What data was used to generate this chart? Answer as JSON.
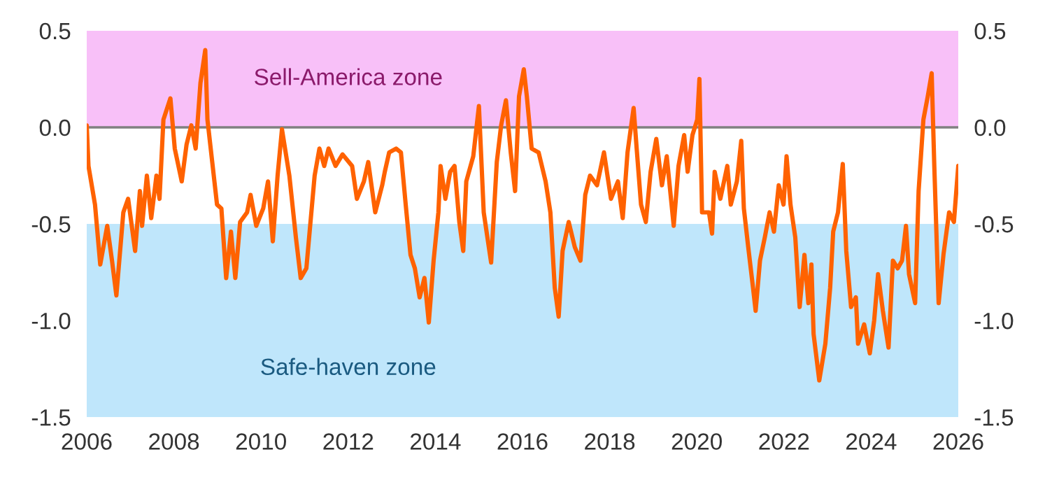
{
  "chart_data": {
    "type": "line",
    "x": [
      2006.0,
      2006.04,
      2006.19,
      2006.31,
      2006.47,
      2006.58,
      2006.68,
      2006.84,
      2006.95,
      2007.11,
      2007.22,
      2007.27,
      2007.38,
      2007.48,
      2007.6,
      2007.67,
      2007.76,
      2007.92,
      2008.02,
      2008.18,
      2008.29,
      2008.4,
      2008.5,
      2008.61,
      2008.72,
      2008.77,
      2008.88,
      2008.99,
      2009.09,
      2009.2,
      2009.31,
      2009.41,
      2009.52,
      2009.68,
      2009.76,
      2009.89,
      2010.05,
      2010.16,
      2010.27,
      2010.38,
      2010.48,
      2010.65,
      2010.8,
      2010.91,
      2011.04,
      2011.23,
      2011.34,
      2011.45,
      2011.55,
      2011.71,
      2011.87,
      2012.09,
      2012.2,
      2012.36,
      2012.46,
      2012.62,
      2012.78,
      2012.84,
      2012.94,
      2013.1,
      2013.21,
      2013.32,
      2013.43,
      2013.53,
      2013.64,
      2013.75,
      2013.85,
      2013.96,
      2014.07,
      2014.12,
      2014.23,
      2014.34,
      2014.44,
      2014.55,
      2014.64,
      2014.71,
      2014.87,
      2015.0,
      2015.11,
      2015.28,
      2015.41,
      2015.51,
      2015.62,
      2015.73,
      2015.83,
      2015.92,
      2016.03,
      2016.1,
      2016.21,
      2016.37,
      2016.53,
      2016.64,
      2016.74,
      2016.83,
      2016.92,
      2017.06,
      2017.2,
      2017.33,
      2017.44,
      2017.55,
      2017.71,
      2017.87,
      2018.03,
      2018.19,
      2018.3,
      2018.41,
      2018.55,
      2018.62,
      2018.72,
      2018.83,
      2018.94,
      2019.07,
      2019.2,
      2019.31,
      2019.47,
      2019.58,
      2019.71,
      2019.79,
      2019.9,
      2020.01,
      2020.06,
      2020.12,
      2020.28,
      2020.35,
      2020.41,
      2020.54,
      2020.7,
      2020.78,
      2020.92,
      2021.02,
      2021.08,
      2021.18,
      2021.29,
      2021.35,
      2021.45,
      2021.56,
      2021.67,
      2021.77,
      2021.88,
      2021.99,
      2022.06,
      2022.15,
      2022.26,
      2022.36,
      2022.47,
      2022.56,
      2022.63,
      2022.68,
      2022.81,
      2022.95,
      2023.06,
      2023.13,
      2023.24,
      2023.35,
      2023.43,
      2023.54,
      2023.65,
      2023.7,
      2023.84,
      2023.97,
      2024.07,
      2024.16,
      2024.27,
      2024.4,
      2024.5,
      2024.61,
      2024.71,
      2024.8,
      2024.87,
      2025.01,
      2025.09,
      2025.2,
      2025.3,
      2025.39,
      2025.45,
      2025.55,
      2025.66,
      2025.79,
      2025.9,
      2026.0
    ],
    "series": [
      {
        "color": "#ff6200",
        "values": [
          0.01,
          -0.2,
          -0.4,
          -0.71,
          -0.51,
          -0.69,
          -0.87,
          -0.44,
          -0.37,
          -0.64,
          -0.33,
          -0.51,
          -0.25,
          -0.47,
          -0.25,
          -0.37,
          0.04,
          0.15,
          -0.11,
          -0.28,
          -0.09,
          0.01,
          -0.11,
          0.23,
          0.4,
          0.04,
          -0.18,
          -0.4,
          -0.42,
          -0.78,
          -0.54,
          -0.78,
          -0.49,
          -0.44,
          -0.35,
          -0.51,
          -0.42,
          -0.28,
          -0.59,
          -0.25,
          -0.01,
          -0.25,
          -0.57,
          -0.78,
          -0.73,
          -0.25,
          -0.11,
          -0.2,
          -0.11,
          -0.2,
          -0.14,
          -0.2,
          -0.37,
          -0.28,
          -0.18,
          -0.44,
          -0.3,
          -0.23,
          -0.13,
          -0.11,
          -0.13,
          -0.4,
          -0.66,
          -0.73,
          -0.88,
          -0.78,
          -1.01,
          -0.69,
          -0.44,
          -0.2,
          -0.37,
          -0.23,
          -0.2,
          -0.49,
          -0.64,
          -0.28,
          -0.15,
          0.11,
          -0.44,
          -0.7,
          -0.18,
          0.01,
          0.14,
          -0.13,
          -0.33,
          0.16,
          0.3,
          0.16,
          -0.11,
          -0.13,
          -0.28,
          -0.44,
          -0.83,
          -0.98,
          -0.64,
          -0.49,
          -0.62,
          -0.69,
          -0.35,
          -0.25,
          -0.3,
          -0.13,
          -0.37,
          -0.28,
          -0.47,
          -0.13,
          0.1,
          -0.11,
          -0.4,
          -0.49,
          -0.23,
          -0.06,
          -0.3,
          -0.15,
          -0.51,
          -0.2,
          -0.04,
          -0.23,
          -0.04,
          0.04,
          0.25,
          -0.44,
          -0.44,
          -0.55,
          -0.23,
          -0.37,
          -0.2,
          -0.4,
          -0.28,
          -0.07,
          -0.42,
          -0.62,
          -0.83,
          -0.95,
          -0.69,
          -0.57,
          -0.44,
          -0.54,
          -0.3,
          -0.4,
          -0.15,
          -0.4,
          -0.57,
          -0.93,
          -0.66,
          -0.91,
          -0.71,
          -1.07,
          -1.31,
          -1.12,
          -0.83,
          -0.54,
          -0.44,
          -0.19,
          -0.64,
          -0.93,
          -0.88,
          -1.12,
          -1.02,
          -1.17,
          -1.0,
          -0.76,
          -0.95,
          -1.14,
          -0.69,
          -0.73,
          -0.69,
          -0.51,
          -0.76,
          -0.91,
          -0.33,
          0.04,
          0.16,
          0.28,
          -0.2,
          -0.91,
          -0.66,
          -0.44,
          -0.49,
          -0.2
        ]
      }
    ],
    "xlim": [
      2006,
      2026
    ],
    "xticks": [
      2006,
      2008,
      2010,
      2012,
      2014,
      2016,
      2018,
      2020,
      2022,
      2024,
      2026
    ],
    "ylim": [
      -1.5,
      0.5
    ],
    "yticks": [
      {
        "value": 0.5,
        "label": "0.5"
      },
      {
        "value": 0.0,
        "label": "0.0"
      },
      {
        "value": -0.5,
        "label": "-0.5"
      },
      {
        "value": -1.0,
        "label": "-1.0"
      },
      {
        "value": -1.5,
        "label": "-1.5"
      }
    ],
    "y2lim": [
      -1.5,
      0.5
    ],
    "y2ticks": [
      {
        "value": 0.5,
        "label": "0.5"
      },
      {
        "value": 0.0,
        "label": "0.0"
      },
      {
        "value": -0.5,
        "label": "-0.5"
      },
      {
        "value": -1.0,
        "label": "-1.0"
      },
      {
        "value": -1.5,
        "label": "-1.5"
      }
    ],
    "bands": [
      {
        "axis": "y",
        "from": 0,
        "to": 0.5,
        "label": "Sell-America zone",
        "color": "#f8c0f8"
      },
      {
        "axis": "y",
        "from": -1.5,
        "to": -0.5,
        "label": "Safe-haven zone",
        "color": "#bfe6fb"
      }
    ],
    "ref_lines": [
      {
        "axis": "y",
        "value": 0,
        "color": "#808080"
      }
    ],
    "grid": false,
    "legend": false,
    "marker": "none",
    "line_style": "solid"
  }
}
